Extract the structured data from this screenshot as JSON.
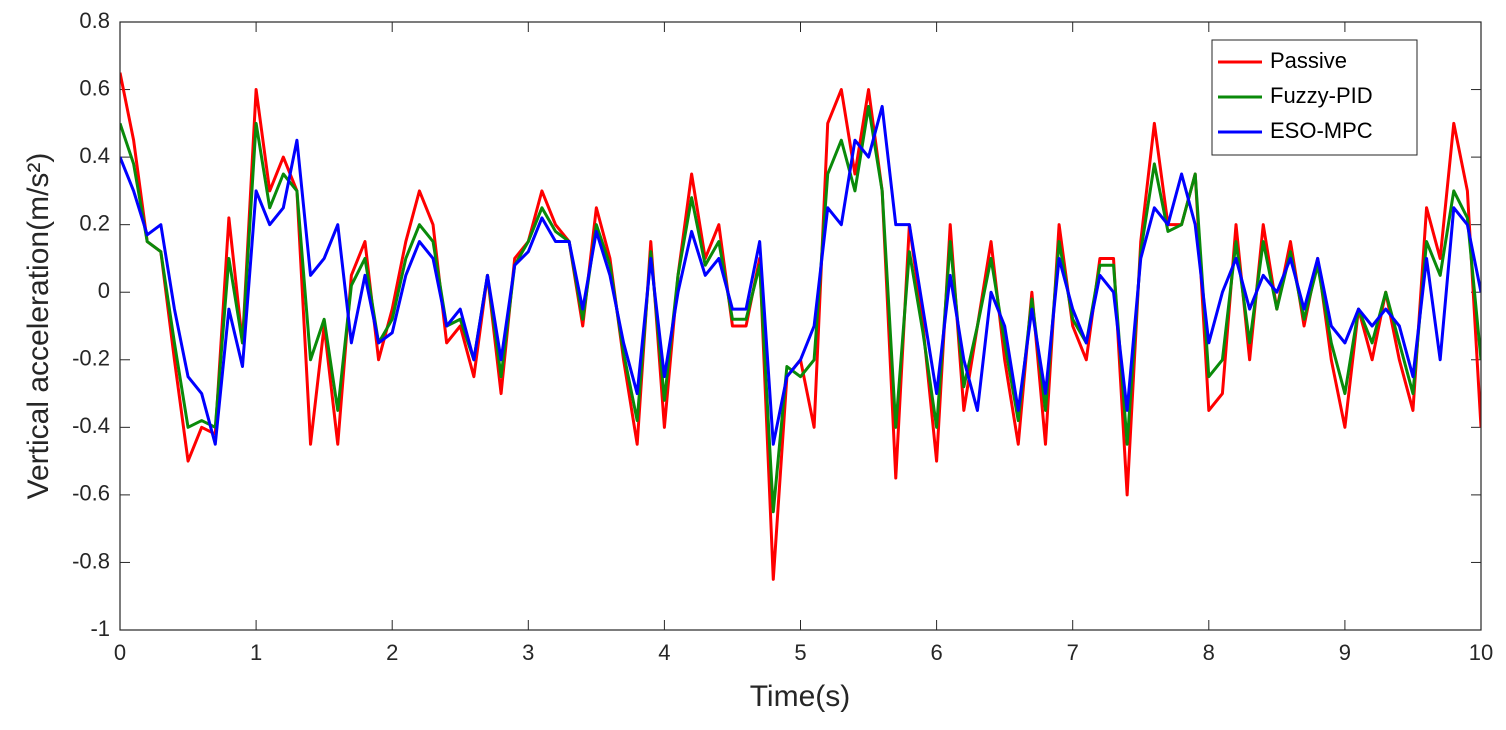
{
  "chart_data": {
    "type": "line",
    "xlabel": "Time(s)",
    "ylabel": "Vertical acceleration(m/s²)",
    "xlim": [
      0,
      10
    ],
    "ylim": [
      -1,
      0.8
    ],
    "xticks": [
      0,
      1,
      2,
      3,
      4,
      5,
      6,
      7,
      8,
      9,
      10
    ],
    "yticks": [
      -1,
      -0.8,
      -0.6,
      -0.4,
      -0.2,
      0,
      0.2,
      0.4,
      0.6,
      0.8
    ],
    "grid": false,
    "legend": "northeast",
    "x": [
      0,
      0.1,
      0.2,
      0.3,
      0.4,
      0.5,
      0.6,
      0.7,
      0.8,
      0.9,
      1,
      1.1,
      1.2,
      1.3,
      1.4,
      1.5,
      1.6,
      1.7,
      1.8,
      1.9,
      2,
      2.1,
      2.2,
      2.3,
      2.4,
      2.5,
      2.6,
      2.7,
      2.8,
      2.9,
      3,
      3.1,
      3.2,
      3.3,
      3.4,
      3.5,
      3.6,
      3.7,
      3.8,
      3.9,
      4,
      4.1,
      4.2,
      4.3,
      4.4,
      4.5,
      4.6,
      4.7,
      4.8,
      4.9,
      5,
      5.1,
      5.2,
      5.3,
      5.4,
      5.5,
      5.6,
      5.7,
      5.8,
      5.9,
      6,
      6.1,
      6.2,
      6.3,
      6.4,
      6.5,
      6.6,
      6.7,
      6.8,
      6.9,
      7,
      7.1,
      7.2,
      7.3,
      7.4,
      7.5,
      7.6,
      7.7,
      7.8,
      7.9,
      8,
      8.1,
      8.2,
      8.3,
      8.4,
      8.5,
      8.6,
      8.7,
      8.8,
      8.9,
      9,
      9.1,
      9.2,
      9.3,
      9.4,
      9.5,
      9.6,
      9.7,
      9.8,
      9.9,
      10
    ],
    "series": [
      {
        "name": "Passive",
        "color": "#ff0000",
        "values": [
          0.65,
          0.45,
          0.15,
          0.12,
          -0.2,
          -0.5,
          -0.4,
          -0.42,
          0.22,
          -0.15,
          0.6,
          0.3,
          0.4,
          0.3,
          -0.45,
          -0.1,
          -0.45,
          0.05,
          0.15,
          -0.2,
          -0.05,
          0.15,
          0.3,
          0.2,
          -0.15,
          -0.1,
          -0.25,
          0.05,
          -0.3,
          0.1,
          0.15,
          0.3,
          0.2,
          0.15,
          -0.1,
          0.25,
          0.1,
          -0.2,
          -0.45,
          0.15,
          -0.4,
          0.05,
          0.35,
          0.1,
          0.2,
          -0.1,
          -0.1,
          0.1,
          -0.85,
          -0.25,
          -0.2,
          -0.4,
          0.5,
          0.6,
          0.35,
          0.6,
          0.3,
          -0.55,
          0.2,
          -0.1,
          -0.5,
          0.2,
          -0.35,
          -0.1,
          0.15,
          -0.2,
          -0.45,
          0,
          -0.45,
          0.2,
          -0.1,
          -0.2,
          0.1,
          0.1,
          -0.6,
          0.15,
          0.5,
          0.2,
          0.2,
          0.35,
          -0.35,
          -0.3,
          0.2,
          -0.2,
          0.2,
          -0.05,
          0.15,
          -0.1,
          0.1,
          -0.2,
          -0.4,
          -0.05,
          -0.2,
          0,
          -0.2,
          -0.35,
          0.25,
          0.1,
          0.5,
          0.3,
          -0.4
        ]
      },
      {
        "name": "Fuzzy-PID",
        "color": "#0a8a0a",
        "values": [
          0.5,
          0.38,
          0.15,
          0.12,
          -0.15,
          -0.4,
          -0.38,
          -0.4,
          0.1,
          -0.15,
          0.5,
          0.25,
          0.35,
          0.3,
          -0.2,
          -0.08,
          -0.35,
          0.02,
          0.1,
          -0.15,
          -0.08,
          0.1,
          0.2,
          0.15,
          -0.1,
          -0.08,
          -0.2,
          0.05,
          -0.25,
          0.08,
          0.15,
          0.25,
          0.18,
          0.15,
          -0.08,
          0.2,
          0.08,
          -0.18,
          -0.38,
          0.12,
          -0.32,
          0.05,
          0.28,
          0.08,
          0.15,
          -0.08,
          -0.08,
          0.08,
          -0.65,
          -0.22,
          -0.25,
          -0.2,
          0.35,
          0.45,
          0.3,
          0.55,
          0.3,
          -0.4,
          0.12,
          -0.12,
          -0.4,
          0.15,
          -0.28,
          -0.1,
          0.1,
          -0.15,
          -0.38,
          -0.02,
          -0.35,
          0.15,
          -0.08,
          -0.15,
          0.08,
          0.08,
          -0.45,
          0.12,
          0.38,
          0.18,
          0.2,
          0.35,
          -0.25,
          -0.2,
          0.15,
          -0.15,
          0.15,
          -0.05,
          0.12,
          -0.08,
          0.08,
          -0.15,
          -0.3,
          -0.05,
          -0.15,
          0,
          -0.15,
          -0.3,
          0.15,
          0.05,
          0.3,
          0.22,
          -0.2
        ]
      },
      {
        "name": "ESO-MPC",
        "color": "#0000ff",
        "values": [
          0.4,
          0.3,
          0.17,
          0.2,
          -0.05,
          -0.25,
          -0.3,
          -0.45,
          -0.05,
          -0.22,
          0.3,
          0.2,
          0.25,
          0.45,
          0.05,
          0.1,
          0.2,
          -0.15,
          0.05,
          -0.15,
          -0.12,
          0.05,
          0.15,
          0.1,
          -0.1,
          -0.05,
          -0.2,
          0.05,
          -0.2,
          0.08,
          0.12,
          0.22,
          0.15,
          0.15,
          -0.05,
          0.18,
          0.05,
          -0.15,
          -0.3,
          0.1,
          -0.25,
          0,
          0.18,
          0.05,
          0.1,
          -0.05,
          -0.05,
          0.15,
          -0.45,
          -0.25,
          -0.2,
          -0.1,
          0.25,
          0.2,
          0.45,
          0.4,
          0.55,
          0.2,
          0.2,
          -0.05,
          -0.3,
          0.05,
          -0.2,
          -0.35,
          0,
          -0.1,
          -0.35,
          -0.05,
          -0.3,
          0.1,
          -0.05,
          -0.15,
          0.05,
          0,
          -0.35,
          0.1,
          0.25,
          0.2,
          0.35,
          0.2,
          -0.15,
          0,
          0.1,
          -0.05,
          0.05,
          0,
          0.1,
          -0.05,
          0.1,
          -0.1,
          -0.15,
          -0.05,
          -0.1,
          -0.05,
          -0.1,
          -0.25,
          0.1,
          -0.2,
          0.25,
          0.2,
          0
        ]
      }
    ]
  }
}
